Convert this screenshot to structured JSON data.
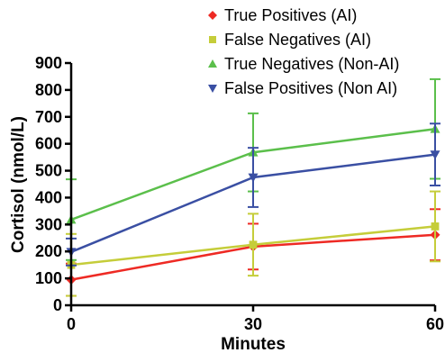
{
  "chart_data": {
    "type": "line",
    "xlabel": "Minutes",
    "ylabel": "Cortisol (nmol/L)",
    "x": [
      0,
      30,
      60
    ],
    "x_ticks": [
      "0",
      "30",
      "60"
    ],
    "xlim": [
      0,
      60
    ],
    "y_ticks": [
      "0",
      "100",
      "200",
      "300",
      "400",
      "500",
      "600",
      "700",
      "800",
      "900"
    ],
    "ylim": [
      0,
      900
    ],
    "grid": false,
    "legend_position": "top-right",
    "series": [
      {
        "name": "True Positives (AI)",
        "color": "#ee2a24",
        "marker": "diamond",
        "values": [
          95,
          218,
          262
        ],
        "errors": [
          60,
          85,
          95
        ]
      },
      {
        "name": "False Negatives (AI)",
        "color": "#c5cd3a",
        "marker": "square",
        "values": [
          150,
          225,
          293
        ],
        "errors": [
          115,
          115,
          130
        ]
      },
      {
        "name": "True Negatives (Non-AI)",
        "color": "#5bbf4b",
        "marker": "triangle-up",
        "values": [
          318,
          568,
          655
        ],
        "errors": [
          150,
          145,
          185
        ]
      },
      {
        "name": "False Positives (Non AI)",
        "color": "#3a4fa3",
        "marker": "triangle-down",
        "values": [
          198,
          475,
          560
        ],
        "errors": [
          50,
          110,
          115
        ]
      }
    ]
  }
}
